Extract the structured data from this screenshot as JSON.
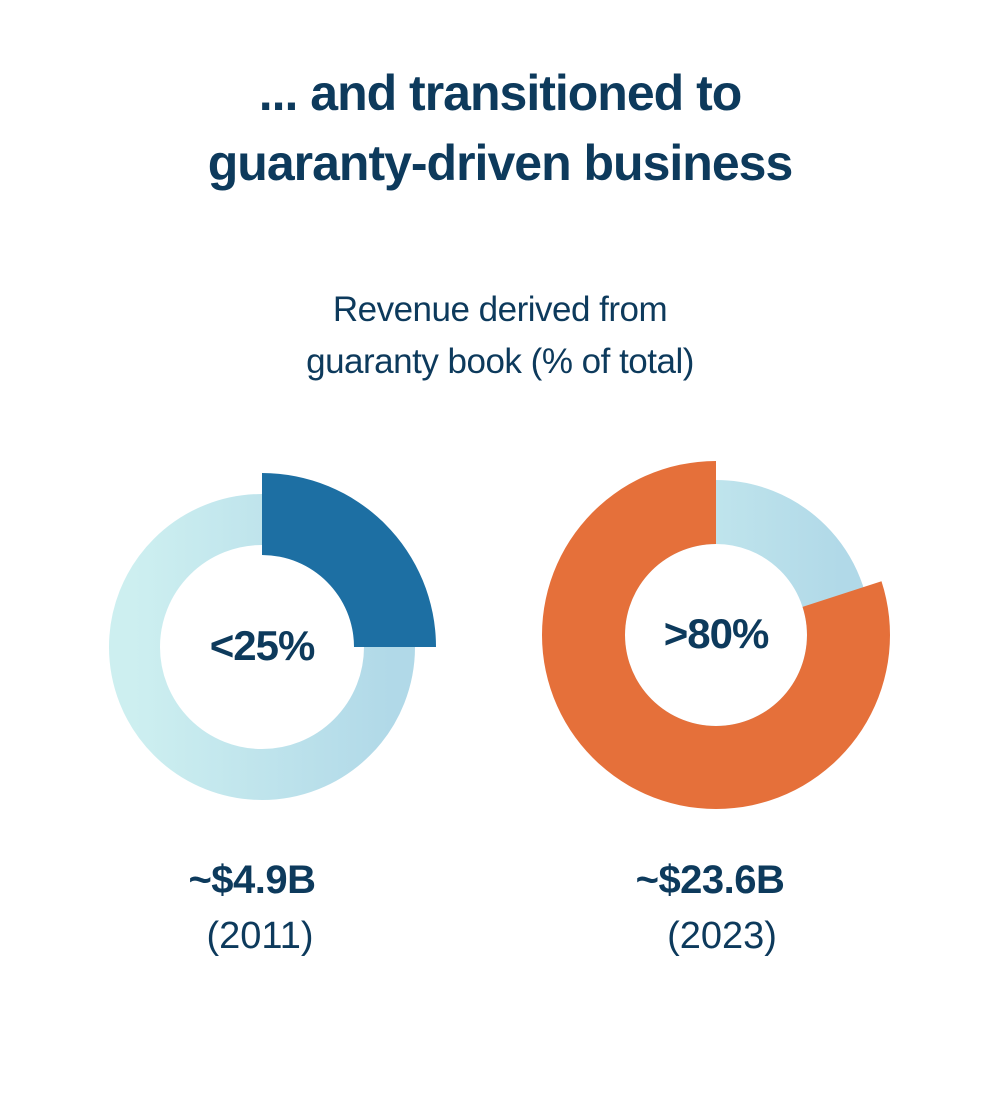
{
  "title_lines": [
    "... and transitioned to",
    "guaranty-driven business"
  ],
  "subtitle_lines": [
    "Revenue derived from",
    "guaranty book (% of total)"
  ],
  "colors": {
    "text": "#0d3a5c",
    "ring_light_start": "#cdeff0",
    "ring_light_end": "#b1d9e8"
  },
  "chart_data": [
    {
      "type": "pie",
      "variant": "donut",
      "share": 25,
      "center_label": "<25%",
      "amount": "~$4.9B",
      "year": "(2011)",
      "highlight_color": "#1d6fa3"
    },
    {
      "type": "pie",
      "variant": "donut",
      "share": 80,
      "center_label": ">80%",
      "amount": "~$23.6B",
      "year": "(2023)",
      "highlight_color": "#e5703a"
    }
  ]
}
